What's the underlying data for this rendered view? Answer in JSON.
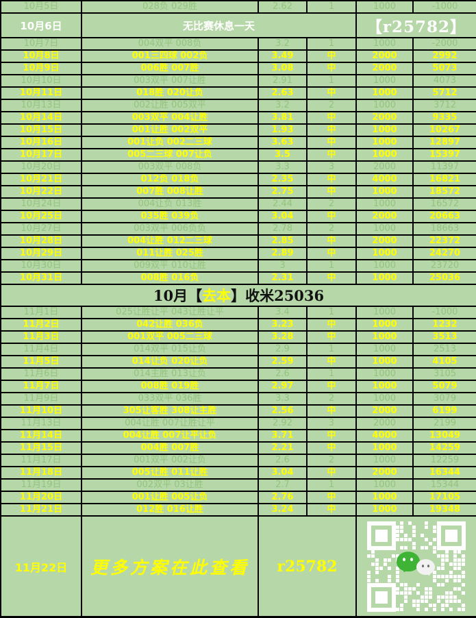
{
  "colors": {
    "background": "#b6d7a8",
    "miss_text": "#93c47d",
    "hit_text": "#ffff00",
    "rest_text": "#ffffff",
    "border": "#000000",
    "wechat_green": "#3eb335"
  },
  "table": {
    "columns": [
      "date",
      "picks",
      "odds",
      "result",
      "stake",
      "profit"
    ],
    "hit_label": "中",
    "rows": [
      {
        "type": "miss",
        "date": "10月5日",
        "picks": "028负 029胜",
        "odds": "2.62",
        "result": "1",
        "stake": "1000",
        "profit": "-1000"
      },
      {
        "type": "rest",
        "date": "10月6日",
        "message": "无比赛休息一天",
        "code": "【r25782】"
      },
      {
        "type": "miss",
        "date": "10月7日",
        "picks": "004双平 008负",
        "odds": "3.2",
        "result": "1",
        "stake": "1000",
        "profit": "-2000"
      },
      {
        "type": "hit",
        "date": "10月8日",
        "picks": "001三四球 002负",
        "odds": "3.49",
        "result": "中",
        "stake": "2000",
        "profit": "2992"
      },
      {
        "type": "hit",
        "date": "10月9日",
        "picks": "006胜 007胜",
        "odds": "3.08",
        "result": "中",
        "stake": "2000",
        "profit": "5073"
      },
      {
        "type": "miss",
        "date": "10月10日",
        "picks": "003双平 007让胜",
        "odds": "2.91",
        "result": "1",
        "stake": "1000",
        "profit": "4073"
      },
      {
        "type": "hit",
        "date": "10月11日",
        "picks": "018胜 020让负",
        "odds": "2.63",
        "result": "中",
        "stake": "1000",
        "profit": "5712"
      },
      {
        "type": "miss",
        "date": "10月13日",
        "picks": "002让胜 005双平",
        "odds": "3.2",
        "result": "2",
        "stake": "1000",
        "profit": "3712"
      },
      {
        "type": "hit",
        "date": "10月14日",
        "picks": "003双平 004让胜",
        "odds": "3.81",
        "result": "中",
        "stake": "2000",
        "profit": "9335"
      },
      {
        "type": "hit",
        "date": "10月15日",
        "picks": "001让胜 002双平",
        "odds": "1.93",
        "result": "中",
        "stake": "1000",
        "profit": "10267"
      },
      {
        "type": "hit",
        "date": "10月16日",
        "picks": "001让负 002二三球",
        "odds": "3.63",
        "result": "中",
        "stake": "1000",
        "profit": "12897"
      },
      {
        "type": "hit",
        "date": "10月17日",
        "picks": "005二三球 007让负",
        "odds": "3.5",
        "result": "中",
        "stake": "1000",
        "profit": "15397"
      },
      {
        "type": "miss",
        "date": "10月20日",
        "picks": "003双平 008负",
        "odds": "3.3",
        "result": "3",
        "stake": "2000",
        "profit": "11397"
      },
      {
        "type": "hit",
        "date": "10月21日",
        "picks": "012负 018负",
        "odds": "2.35",
        "result": "中",
        "stake": "4000",
        "profit": "16821"
      },
      {
        "type": "hit",
        "date": "10月22日",
        "picks": "007胜 008让胜",
        "odds": "2.75",
        "result": "中",
        "stake": "1000",
        "profit": "18572"
      },
      {
        "type": "miss",
        "date": "10月24日",
        "picks": "004让负 013胜",
        "odds": "2.44",
        "result": "2",
        "stake": "1000",
        "profit": "16572"
      },
      {
        "type": "hit",
        "date": "10月25日",
        "picks": "035胜 039负",
        "odds": "3.04",
        "result": "中",
        "stake": "2000",
        "profit": "20663"
      },
      {
        "type": "miss",
        "date": "10月27日",
        "picks": "003双平 006负负",
        "odds": "2.78",
        "result": "2",
        "stake": "1000",
        "profit": "18663"
      },
      {
        "type": "hit",
        "date": "10月28日",
        "picks": "004让胜 012二三球",
        "odds": "2.85",
        "result": "中",
        "stake": "2000",
        "profit": "22372"
      },
      {
        "type": "hit",
        "date": "10月29日",
        "picks": "011让胜 025胜",
        "odds": "2.89",
        "result": "中",
        "stake": "1000",
        "profit": "24270"
      },
      {
        "type": "miss",
        "date": "10月30日",
        "picks": "009双平 010让胜",
        "odds": "3",
        "result": "1",
        "stake": "1000",
        "profit": "23720"
      },
      {
        "type": "hit",
        "date": "10月31日",
        "picks": "008胜 016负",
        "odds": "2.31",
        "result": "中",
        "stake": "1000",
        "profit": "25036"
      },
      {
        "type": "summary",
        "segments": [
          {
            "text": "10月【",
            "color": "dark"
          },
          {
            "text": "去本",
            "color": "yellow"
          },
          {
            "text": "】收米25036",
            "color": "dark"
          }
        ]
      },
      {
        "type": "miss",
        "date": "11月1日",
        "picks": "025让胜让平 043让胜让平",
        "odds": "3.4",
        "result": "1",
        "stake": "1000",
        "profit": "-1000"
      },
      {
        "type": "hit",
        "date": "11月2日",
        "picks": "042让胜 036负",
        "odds": "3.23",
        "result": "中",
        "stake": "1000",
        "profit": "1232"
      },
      {
        "type": "hit",
        "date": "11月3日",
        "picks": "001双平 005二三球",
        "odds": "3.28",
        "result": "中",
        "stake": "1000",
        "profit": "3513"
      },
      {
        "type": "miss",
        "date": "11月4日",
        "picks": "014双平 015让负",
        "odds": "2.9",
        "result": "1",
        "stake": "1000",
        "profit": "2513"
      },
      {
        "type": "hit",
        "date": "11月5日",
        "picks": "014让负 020让负",
        "odds": "2.59",
        "result": "中",
        "stake": "1000",
        "profit": "4105"
      },
      {
        "type": "miss",
        "date": "11月6日",
        "picks": "014主胜 013让负",
        "odds": "2.6",
        "result": "1",
        "stake": "1000",
        "profit": "3105"
      },
      {
        "type": "hit",
        "date": "11月7日",
        "picks": "008胜 019胜",
        "odds": "2.97",
        "result": "中",
        "stake": "1000",
        "profit": "5079"
      },
      {
        "type": "miss",
        "date": "11月9日",
        "picks": "033双平 036胜",
        "odds": "3.3",
        "result": "2",
        "stake": "1000",
        "profit": "3079"
      },
      {
        "type": "hit",
        "date": "11月10日",
        "picks": "305让客胜 308让主胜",
        "odds": "2.56",
        "result": "中",
        "stake": "2000",
        "profit": "6199"
      },
      {
        "type": "miss",
        "date": "11月13日",
        "picks": "004让胜 007让胜让平",
        "odds": "2.92",
        "result": "3",
        "stake": "2000",
        "profit": "2199"
      },
      {
        "type": "hit",
        "date": "11月14日",
        "picks": "004让胜 007让平让负",
        "odds": "3.71",
        "result": "中",
        "stake": "4000",
        "profit": "13049"
      },
      {
        "type": "hit",
        "date": "11月15日",
        "picks": "004胜 007胜",
        "odds": "2.21",
        "result": "中",
        "stake": "1000",
        "profit": "14259"
      },
      {
        "type": "miss",
        "date": "11月17日",
        "picks": "001双平 002让负",
        "odds": "2.6",
        "result": "2",
        "stake": "1000",
        "profit": "12259"
      },
      {
        "type": "hit",
        "date": "11月18日",
        "picks": "005让胜 011让胜",
        "odds": "3.04",
        "result": "中",
        "stake": "2000",
        "profit": "16344"
      },
      {
        "type": "miss",
        "date": "11月19日",
        "picks": "002双平 03让胜",
        "odds": "2.7",
        "result": "1",
        "stake": "1000",
        "profit": "15344"
      },
      {
        "type": "hit",
        "date": "11月20日",
        "picks": "001让胜 005让负",
        "odds": "2.76",
        "result": "中",
        "stake": "1000",
        "profit": "17105"
      },
      {
        "type": "hit",
        "date": "11月21日",
        "picks": "012胜 016让胜",
        "odds": "3.24",
        "result": "中",
        "stake": "1000",
        "profit": "19348"
      },
      {
        "type": "footer",
        "date": "11月22日",
        "message": "更多方案在此查看",
        "code": "r25782",
        "qr": "wechat-qr-code"
      }
    ]
  }
}
